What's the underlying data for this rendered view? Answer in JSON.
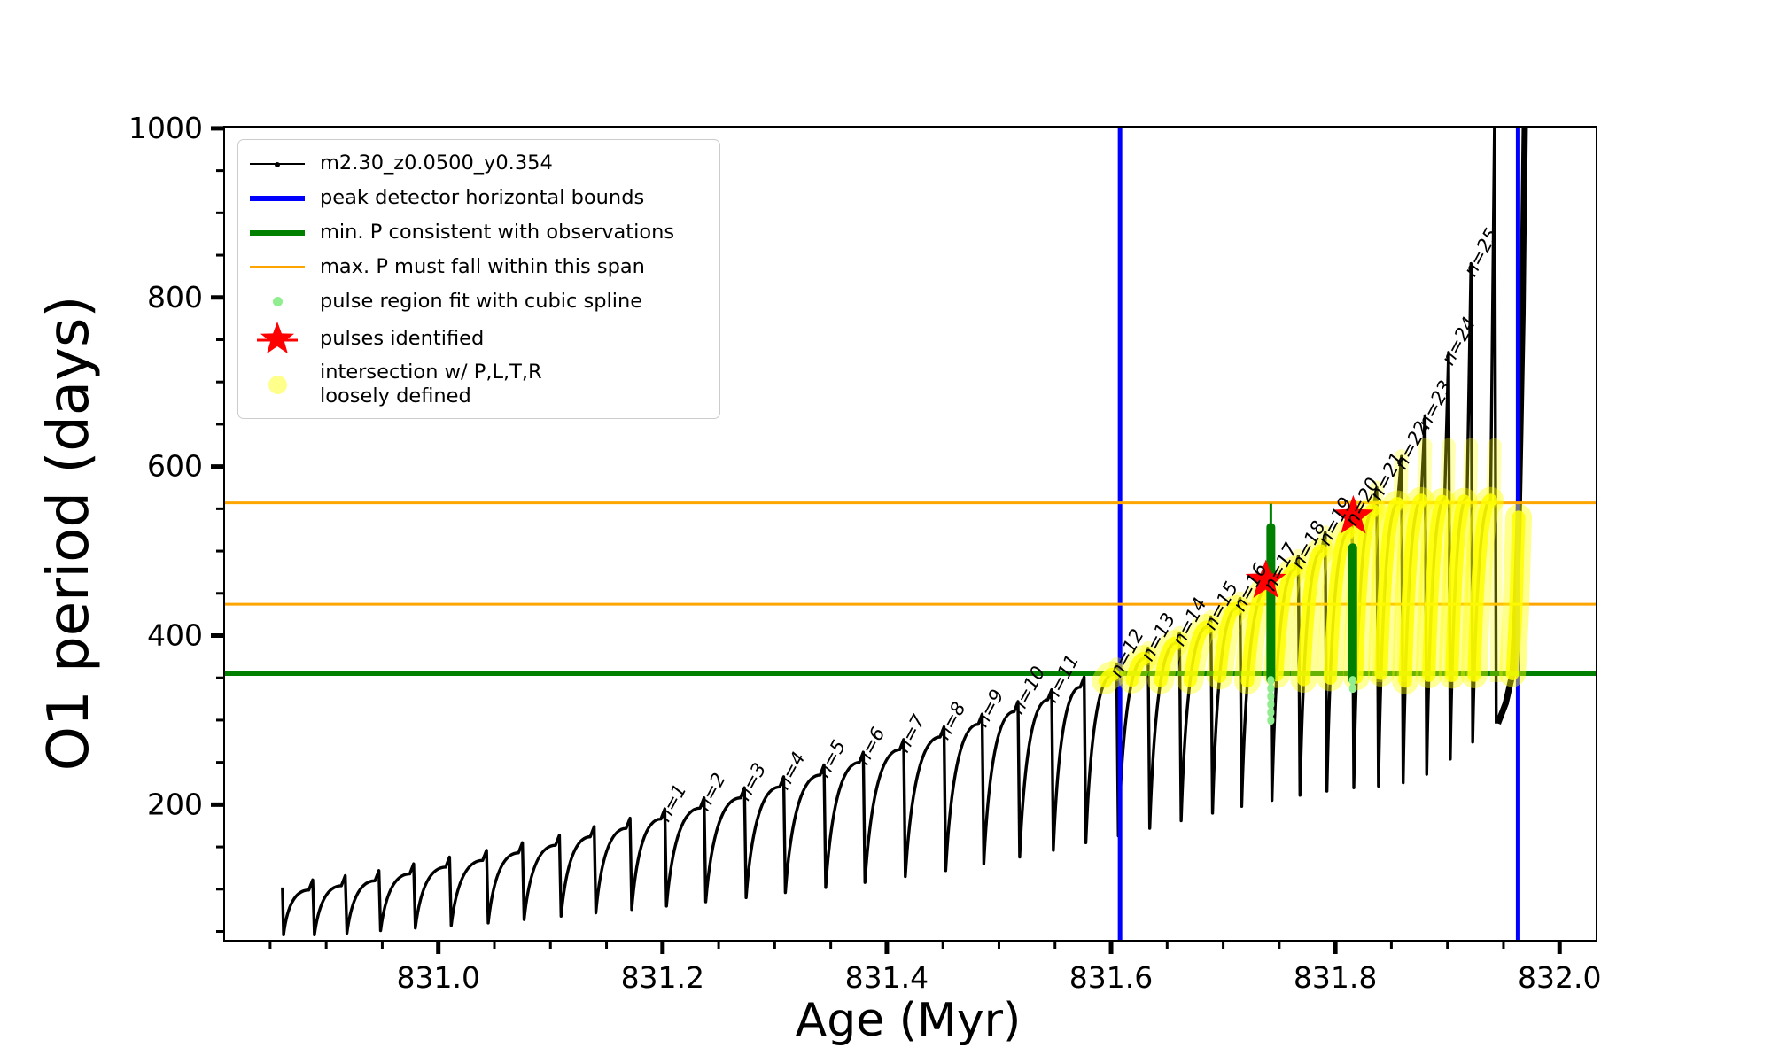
{
  "chart_data": {
    "type": "line",
    "title": "",
    "xlabel": "Age (Myr)",
    "ylabel": "O1 period (days)",
    "xlim": [
      830.809,
      832.033
    ],
    "ylim": [
      39,
      1002
    ],
    "xticks": [
      831.0,
      831.2,
      831.4,
      831.6,
      831.8,
      832.0
    ],
    "xtick_labels": [
      "831.0",
      "831.2",
      "831.4",
      "831.6",
      "831.8",
      "832.0"
    ],
    "x_minor_step": 0.05,
    "yticks": [
      200,
      400,
      600,
      800,
      1000
    ],
    "ytick_labels": [
      "200",
      "400",
      "600",
      "800",
      "1000"
    ],
    "y_minor_step": 50,
    "grid": false,
    "legend_position": "upper left",
    "series_name": "m2.30_z0.0500_y0.354",
    "peak_detector_bounds_ages": [
      831.608,
      831.963
    ],
    "min_P_consistent": 355,
    "max_P_span": [
      437,
      557
    ],
    "start_point": {
      "age": 830.861,
      "period": 102,
      "first_trough": 46
    },
    "pulses": [
      {
        "age": 830.888,
        "peak": 111,
        "trough": 46
      },
      {
        "age": 830.917,
        "peak": 116,
        "trough": 48
      },
      {
        "age": 830.947,
        "peak": 122,
        "trough": 51
      },
      {
        "age": 830.978,
        "peak": 130,
        "trough": 54
      },
      {
        "age": 831.01,
        "peak": 138,
        "trough": 57
      },
      {
        "age": 831.043,
        "peak": 146,
        "trough": 60
      },
      {
        "age": 831.075,
        "peak": 155,
        "trough": 64
      },
      {
        "age": 831.108,
        "peak": 164,
        "trough": 68
      },
      {
        "age": 831.139,
        "peak": 174,
        "trough": 72
      },
      {
        "age": 831.171,
        "peak": 184,
        "trough": 76
      },
      {
        "age": 831.202,
        "peak": 195,
        "trough": 80,
        "label": "n=1"
      },
      {
        "age": 831.237,
        "peak": 208,
        "trough": 85,
        "label": "n=2"
      },
      {
        "age": 831.273,
        "peak": 220,
        "trough": 90,
        "label": "n=3"
      },
      {
        "age": 831.308,
        "peak": 233,
        "trough": 96,
        "label": "n=4"
      },
      {
        "age": 831.344,
        "peak": 247,
        "trough": 102,
        "label": "n=5"
      },
      {
        "age": 831.379,
        "peak": 262,
        "trough": 108,
        "label": "n=6"
      },
      {
        "age": 831.415,
        "peak": 277,
        "trough": 115,
        "label": "n=7"
      },
      {
        "age": 831.451,
        "peak": 292,
        "trough": 122,
        "label": "n=8"
      },
      {
        "age": 831.485,
        "peak": 307,
        "trough": 130,
        "label": "n=9"
      },
      {
        "age": 831.517,
        "peak": 322,
        "trough": 138,
        "label": "n=10"
      },
      {
        "age": 831.547,
        "peak": 336,
        "trough": 146,
        "label": "n=11"
      },
      {
        "age": 831.576,
        "peak": 351,
        "trough": 155
      },
      {
        "age": 831.605,
        "peak": 366,
        "trough": 163,
        "label": "n=12"
      },
      {
        "age": 831.633,
        "peak": 385,
        "trough": 172,
        "label": "n=13"
      },
      {
        "age": 831.661,
        "peak": 403,
        "trough": 181,
        "label": "n=14"
      },
      {
        "age": 831.689,
        "peak": 422,
        "trough": 190,
        "label": "n=15"
      },
      {
        "age": 831.715,
        "peak": 444,
        "trough": 198,
        "shoulder": 432,
        "label": "n=16"
      },
      {
        "age": 831.742,
        "peak": 468,
        "trough": 205,
        "shoulder": 455,
        "label": "n=17"
      },
      {
        "age": 831.767,
        "peak": 494,
        "trough": 211,
        "shoulder": 478,
        "label": "n=18"
      },
      {
        "age": 831.791,
        "peak": 522,
        "trough": 216,
        "shoulder": 500,
        "label": "n=19"
      },
      {
        "age": 831.815,
        "peak": 545,
        "trough": 220,
        "shoulder": 522,
        "label": "n=20"
      },
      {
        "age": 831.837,
        "peak": 575,
        "trough": 222,
        "shoulder": 548,
        "label": "n=21"
      },
      {
        "age": 831.859,
        "peak": 612,
        "trough": 226,
        "shoulder": 556,
        "label": "n=22"
      },
      {
        "age": 831.88,
        "peak": 660,
        "trough": 236,
        "shoulder": 560,
        "label": "n=23"
      },
      {
        "age": 831.901,
        "peak": 735,
        "trough": 254,
        "shoulder": 562,
        "label": "n=24"
      },
      {
        "age": 831.921,
        "peak": 840,
        "trough": 274,
        "shoulder": 564,
        "label": "n=25"
      },
      {
        "age": 831.942,
        "peak": 1005,
        "trough": 296,
        "shoulder": 560
      }
    ],
    "final_rise": [
      [
        831.945,
        296
      ],
      [
        831.952,
        320
      ],
      [
        831.958,
        355
      ],
      [
        831.961,
        430
      ],
      [
        831.9635,
        540
      ],
      [
        831.965,
        640
      ],
      [
        831.967,
        780
      ],
      [
        831.968,
        900
      ],
      [
        831.969,
        1005
      ]
    ],
    "red_stars": [
      {
        "age": 831.738,
        "period": 465
      },
      {
        "age": 831.816,
        "period": 541
      }
    ],
    "spline_bars": [
      {
        "age": 831.7425,
        "dark": [
          348,
          528
        ],
        "thin_top": 556,
        "light": [
          292,
          348
        ]
      },
      {
        "age": 831.8155,
        "dark": [
          348,
          504
        ],
        "thin_top": null,
        "light": [
          336,
          348
        ]
      }
    ],
    "intersection_band": [
      345,
      560
    ],
    "colors": {
      "series": "#000000",
      "peak_detector_bounds": "#0000ff",
      "min_P_line": "#008000",
      "max_P_span_lines": "#ffa500",
      "spline_fit_light": "#90ee90",
      "spline_fit_dark": "#008000",
      "pulses_identified": "#ff0000",
      "intersection_marker": "#ffff00",
      "background": "#ffffff"
    }
  },
  "legend": {
    "items": [
      {
        "label": "m2.30_z0.0500_y0.354"
      },
      {
        "label": "peak detector horizontal bounds"
      },
      {
        "label": "min. P consistent with observations"
      },
      {
        "label": "max. P must fall within this span"
      },
      {
        "label": "pulse region fit with cubic spline"
      },
      {
        "label": "pulses identified"
      },
      {
        "label": "intersection w/ P,L,T,R\nloosely defined"
      }
    ]
  }
}
